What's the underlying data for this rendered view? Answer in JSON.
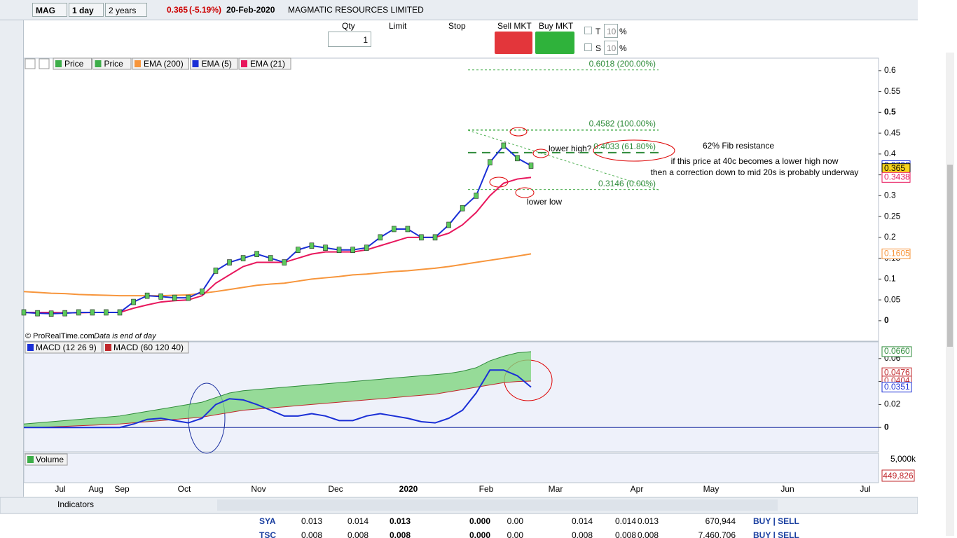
{
  "title_bar": {
    "symbol": "MAG",
    "interval": "1 day",
    "range": "2 years",
    "last": "0.365",
    "change": "(-5.19%)",
    "date": "20-Feb-2020",
    "name": "MAGMATIC RESOURCES LIMITED"
  },
  "order_bar": {
    "qty_label": "Qty",
    "qty": "1",
    "limit": "Limit",
    "stop": "Stop",
    "sell": "Sell MKT",
    "buy": "Buy MKT",
    "t_label": "T",
    "t_value": "10",
    "s_label": "S",
    "s_value": "10",
    "unit": "%"
  },
  "price_panel": {
    "legend": [
      "Price",
      "Price",
      "EMA (200)",
      "EMA (5)",
      "EMA (21)"
    ],
    "ylim": [
      -0.049,
      0.63
    ],
    "yticks": [
      0,
      0.05,
      0.1,
      0.15,
      0.2,
      0.25,
      0.3,
      0.35,
      0.4,
      0.45,
      0.5,
      0.55,
      0.6
    ],
    "series": [
      {
        "name": "EMA (200)",
        "color": "#f7953b",
        "values": [
          0.07,
          0.068,
          0.066,
          0.065,
          0.063,
          0.062,
          0.061,
          0.06,
          0.06,
          0.06,
          0.06,
          0.061,
          0.062,
          0.066,
          0.07,
          0.075,
          0.08,
          0.085,
          0.088,
          0.09,
          0.095,
          0.1,
          0.103,
          0.106,
          0.11,
          0.112,
          0.115,
          0.118,
          0.12,
          0.123,
          0.126,
          0.13,
          0.135,
          0.14,
          0.145,
          0.15,
          0.155,
          0.1605
        ]
      },
      {
        "name": "EMA (21)",
        "color": "#e8175d",
        "values": [
          0.02,
          0.02,
          0.02,
          0.019,
          0.019,
          0.02,
          0.02,
          0.02,
          0.03,
          0.038,
          0.045,
          0.048,
          0.05,
          0.06,
          0.09,
          0.11,
          0.13,
          0.14,
          0.14,
          0.14,
          0.15,
          0.16,
          0.165,
          0.165,
          0.165,
          0.17,
          0.18,
          0.19,
          0.2,
          0.2,
          0.2,
          0.21,
          0.23,
          0.26,
          0.3,
          0.33,
          0.34,
          0.3438
        ]
      },
      {
        "name": "EMA (5)",
        "color": "#1a2fd6",
        "values": [
          0.02,
          0.018,
          0.017,
          0.018,
          0.02,
          0.02,
          0.02,
          0.02,
          0.045,
          0.06,
          0.058,
          0.055,
          0.055,
          0.07,
          0.12,
          0.14,
          0.15,
          0.16,
          0.15,
          0.14,
          0.17,
          0.18,
          0.175,
          0.17,
          0.17,
          0.175,
          0.2,
          0.22,
          0.22,
          0.2,
          0.2,
          0.23,
          0.27,
          0.3,
          0.38,
          0.42,
          0.39,
          0.372
        ]
      }
    ],
    "markers": [
      {
        "value": 0.372,
        "label": "0.3720",
        "color": "#1a2fd6"
      },
      {
        "value": 0.365,
        "label": "0.365",
        "color": "#000"
      },
      {
        "value": 0.3438,
        "label": "0.3438",
        "color": "#e8175d"
      },
      {
        "value": 0.1605,
        "label": "0.1605",
        "color": "#f7953b"
      }
    ],
    "fib": [
      {
        "value": 0.6018,
        "label": "0.6018 (200.00%)"
      },
      {
        "value": 0.4582,
        "label": "0.4582 (100.00%)"
      },
      {
        "value": 0.4033,
        "label": "0.4033 (61.80%)"
      },
      {
        "value": 0.3146,
        "label": "0.3146 (0.00%)"
      }
    ],
    "annotations": {
      "lower_high": "lower high?",
      "lower_low": "lower low",
      "fib_note": "62% Fib resistance",
      "comment_1": "if this price at 40c becomes a lower high now",
      "comment_2": "then a correction down to mid 20s is probably underway"
    },
    "source": "© ProRealTime.com",
    "note": "Data is end of day"
  },
  "macd_panel": {
    "legend": [
      "MACD (12 26 9)",
      "MACD (60 120 40)"
    ],
    "ylim": [
      -0.0212,
      0.0745
    ],
    "yticks": [
      0,
      0.02,
      0.04,
      0.06
    ],
    "series": [
      {
        "name": "MACD (60 120 40) upper",
        "color": "#2e8b3a",
        "values": [
          0.003,
          0.004,
          0.005,
          0.006,
          0.007,
          0.008,
          0.009,
          0.01,
          0.012,
          0.014,
          0.016,
          0.018,
          0.02,
          0.022,
          0.026,
          0.03,
          0.032,
          0.033,
          0.034,
          0.035,
          0.036,
          0.037,
          0.038,
          0.039,
          0.04,
          0.041,
          0.042,
          0.043,
          0.044,
          0.045,
          0.046,
          0.047,
          0.049,
          0.052,
          0.058,
          0.062,
          0.065,
          0.066
        ]
      },
      {
        "name": "MACD (60 120 40) lower",
        "color": "#c0282d",
        "values": [
          0,
          0,
          0.0005,
          0.001,
          0.0015,
          0.002,
          0.0025,
          0.003,
          0.004,
          0.005,
          0.006,
          0.007,
          0.008,
          0.009,
          0.011,
          0.013,
          0.015,
          0.016,
          0.017,
          0.018,
          0.019,
          0.02,
          0.021,
          0.022,
          0.023,
          0.024,
          0.025,
          0.026,
          0.027,
          0.028,
          0.029,
          0.031,
          0.033,
          0.035,
          0.037,
          0.039,
          0.04,
          0.0404
        ]
      },
      {
        "name": "MACD (12 26 9)",
        "color": "#1a2fd6",
        "values": [
          0,
          0,
          0,
          0,
          0,
          0,
          0,
          0,
          0.003,
          0.007,
          0.008,
          0.006,
          0.004,
          0.008,
          0.02,
          0.025,
          0.024,
          0.02,
          0.015,
          0.01,
          0.01,
          0.012,
          0.01,
          0.006,
          0.006,
          0.01,
          0.012,
          0.01,
          0.008,
          0.005,
          0.004,
          0.008,
          0.015,
          0.03,
          0.05,
          0.05,
          0.045,
          0.0351
        ]
      }
    ],
    "markers": [
      {
        "value": 0.066,
        "label": "0.0660",
        "color": "#2e8b3a"
      },
      {
        "value": 0.0476,
        "label": "0.0476",
        "color": "#c0282d"
      },
      {
        "value": 0.0404,
        "label": "0.0404",
        "color": "#c0282d"
      },
      {
        "value": 0.0351,
        "label": "0.0351",
        "color": "#1a2fd6"
      }
    ]
  },
  "volume_panel": {
    "legend": "Volume",
    "tick": {
      "value": 5000000,
      "label": "5,000k"
    },
    "last": {
      "value": 449826,
      "label": "449,826"
    }
  },
  "x_axis": [
    "Jul",
    "Aug",
    "Sep",
    "Oct",
    "Nov",
    "Dec",
    "2020",
    "Feb",
    "Mar",
    "Apr",
    "May",
    "Jun",
    "Jul"
  ],
  "bottom_bar": {
    "indicators": "Indicators"
  },
  "table": {
    "rows": [
      [
        "SYA",
        "0.013",
        "0.014",
        "0.013",
        "0.000",
        "0.00",
        "0.014",
        "0.014",
        "0.013",
        "670,944",
        "BUY | SELL"
      ],
      [
        "TSC",
        "0.008",
        "0.008",
        "0.008",
        "0.000",
        "0.00",
        "0.008",
        "0.008",
        "0.008",
        "7,460,706",
        "BUY | SELL"
      ]
    ]
  }
}
